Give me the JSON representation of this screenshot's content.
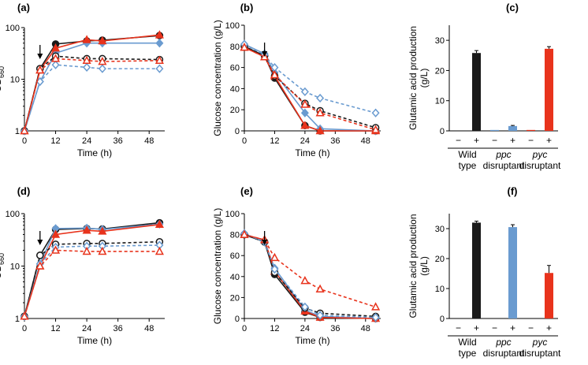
{
  "colors": {
    "black": "#1a1a1a",
    "blue": "#6a9bd0",
    "red": "#e8331c"
  },
  "chart_data": [
    {
      "id": "a",
      "panel_label": "(a)",
      "type": "line",
      "yscale": "log",
      "xlabel": "Time (h)",
      "ylabel_main": "OD",
      "ylabel_sub": "660",
      "xlim": [
        0,
        54
      ],
      "ylim": [
        1,
        100
      ],
      "xticks": [
        "0",
        "12",
        "24",
        "36",
        "48"
      ],
      "yticks": [
        "1",
        "10",
        "100"
      ],
      "arrow_x": 6,
      "series": [
        {
          "name": "wild type +",
          "color": "black",
          "marker": "circle",
          "fill": true,
          "dash": false,
          "x": [
            0,
            6,
            12,
            24,
            30,
            52
          ],
          "y": [
            1.0,
            16,
            48,
            55,
            57,
            70
          ]
        },
        {
          "name": "ppc disruptant +",
          "color": "blue",
          "marker": "diamond",
          "fill": true,
          "dash": false,
          "x": [
            0,
            6,
            12,
            24,
            30,
            52
          ],
          "y": [
            1.0,
            9,
            32,
            50,
            50,
            50
          ]
        },
        {
          "name": "pyc disruptant +",
          "color": "red",
          "marker": "triangle",
          "fill": true,
          "dash": false,
          "x": [
            0,
            6,
            12,
            24,
            30,
            52
          ],
          "y": [
            1.0,
            15,
            40,
            58,
            55,
            72
          ]
        },
        {
          "name": "wild type −",
          "color": "black",
          "marker": "circle",
          "fill": false,
          "dash": true,
          "x": [
            0,
            6,
            12,
            24,
            30,
            52
          ],
          "y": [
            1.0,
            16,
            28,
            25,
            25,
            24
          ]
        },
        {
          "name": "ppc disruptant −",
          "color": "blue",
          "marker": "diamond",
          "fill": false,
          "dash": true,
          "x": [
            0,
            6,
            12,
            24,
            30,
            52
          ],
          "y": [
            1.0,
            9,
            19,
            17,
            16,
            16
          ]
        },
        {
          "name": "pyc disruptant −",
          "color": "red",
          "marker": "triangle",
          "fill": false,
          "dash": true,
          "x": [
            0,
            6,
            12,
            24,
            30,
            52
          ],
          "y": [
            1.0,
            15,
            25,
            23,
            22,
            23
          ]
        }
      ]
    },
    {
      "id": "b",
      "panel_label": "(b)",
      "type": "line",
      "yscale": "linear",
      "xlabel": "Time (h)",
      "ylabel_main": "Glucose concentration (g/L)",
      "ylabel_sub": "",
      "xlim": [
        0,
        54
      ],
      "ylim": [
        0,
        100
      ],
      "xticks": [
        "0",
        "12",
        "24",
        "36",
        "48"
      ],
      "yticks": [
        "0",
        "20",
        "40",
        "60",
        "80",
        "100"
      ],
      "arrow_x": 8,
      "series": [
        {
          "name": "wild type +",
          "color": "black",
          "marker": "circle",
          "fill": true,
          "dash": false,
          "x": [
            0,
            8,
            12,
            24,
            30,
            52
          ],
          "y": [
            80,
            71,
            50,
            5,
            0,
            0
          ]
        },
        {
          "name": "ppc disruptant +",
          "color": "blue",
          "marker": "diamond",
          "fill": true,
          "dash": false,
          "x": [
            0,
            8,
            12,
            24,
            30,
            52
          ],
          "y": [
            82,
            73,
            55,
            17,
            2,
            0
          ]
        },
        {
          "name": "pyc disruptant +",
          "color": "red",
          "marker": "triangle",
          "fill": true,
          "dash": false,
          "x": [
            0,
            8,
            12,
            24,
            30,
            52
          ],
          "y": [
            79,
            70,
            52,
            5,
            0,
            0
          ]
        },
        {
          "name": "wild type −",
          "color": "black",
          "marker": "circle",
          "fill": false,
          "dash": true,
          "x": [
            0,
            8,
            12,
            24,
            30,
            52
          ],
          "y": [
            80,
            71,
            52,
            26,
            19,
            3
          ]
        },
        {
          "name": "ppc disruptant −",
          "color": "blue",
          "marker": "diamond",
          "fill": false,
          "dash": true,
          "x": [
            0,
            8,
            12,
            24,
            30,
            52
          ],
          "y": [
            82,
            72,
            60,
            37,
            31,
            17
          ]
        },
        {
          "name": "pyc disruptant −",
          "color": "red",
          "marker": "triangle",
          "fill": false,
          "dash": true,
          "x": [
            0,
            8,
            12,
            24,
            30,
            52
          ],
          "y": [
            79,
            70,
            53,
            25,
            17,
            1
          ]
        }
      ]
    },
    {
      "id": "c",
      "panel_label": "(c)",
      "type": "bar",
      "ylabel_line1": "Glutamic acid production",
      "ylabel_line2": "(g/L)",
      "ylim": [
        0,
        35
      ],
      "yticks": [
        "0",
        "10",
        "20",
        "30"
      ],
      "signs": [
        "−",
        "+",
        "−",
        "+",
        "−",
        "+"
      ],
      "values": [
        0,
        25.8,
        0.3,
        1.6,
        0.3,
        27.2
      ],
      "errors": [
        0,
        0.8,
        0,
        0.2,
        0,
        0.7
      ],
      "bar_colors": [
        "black",
        "black",
        "blue",
        "blue",
        "red",
        "red"
      ],
      "groups": [
        {
          "line1": "Wild",
          "line2": "type",
          "italic": false
        },
        {
          "line1": "ppc",
          "line2": "disruptant",
          "italic": true
        },
        {
          "line1": "pyc",
          "line2": "disruptant",
          "italic": true
        }
      ]
    },
    {
      "id": "d",
      "panel_label": "(d)",
      "type": "line",
      "yscale": "log",
      "xlabel": "Time (h)",
      "ylabel_main": "OD",
      "ylabel_sub": "660",
      "xlim": [
        0,
        54
      ],
      "ylim": [
        1,
        100
      ],
      "xticks": [
        "0",
        "12",
        "24",
        "36",
        "48"
      ],
      "yticks": [
        "1",
        "10",
        "100"
      ],
      "arrow_x": 6,
      "series": [
        {
          "name": "wild type +",
          "color": "black",
          "marker": "circle",
          "fill": true,
          "dash": false,
          "x": [
            0,
            6,
            12,
            24,
            30,
            52
          ],
          "y": [
            1.1,
            16,
            50,
            52,
            51,
            67
          ]
        },
        {
          "name": "ppc disruptant +",
          "color": "blue",
          "marker": "diamond",
          "fill": true,
          "dash": false,
          "x": [
            0,
            6,
            12,
            24,
            30,
            52
          ],
          "y": [
            1.1,
            11,
            52,
            53,
            50,
            63
          ]
        },
        {
          "name": "pyc disruptant +",
          "color": "red",
          "marker": "triangle",
          "fill": true,
          "dash": false,
          "x": [
            0,
            6,
            12,
            24,
            30,
            52
          ],
          "y": [
            1.1,
            10,
            40,
            48,
            46,
            62
          ]
        },
        {
          "name": "wild type −",
          "color": "black",
          "marker": "circle",
          "fill": false,
          "dash": true,
          "x": [
            0,
            6,
            12,
            24,
            30,
            52
          ],
          "y": [
            1.1,
            16,
            26,
            27,
            27,
            29
          ]
        },
        {
          "name": "ppc disruptant −",
          "color": "blue",
          "marker": "diamond",
          "fill": false,
          "dash": true,
          "x": [
            0,
            6,
            12,
            24,
            30,
            52
          ],
          "y": [
            1.1,
            11,
            23,
            24,
            24,
            25
          ]
        },
        {
          "name": "pyc disruptant −",
          "color": "red",
          "marker": "triangle",
          "fill": false,
          "dash": true,
          "x": [
            0,
            6,
            12,
            24,
            30,
            52
          ],
          "y": [
            1.1,
            10,
            20,
            19,
            19,
            19
          ]
        }
      ]
    },
    {
      "id": "e",
      "panel_label": "(e)",
      "type": "line",
      "yscale": "linear",
      "xlabel": "Time (h)",
      "ylabel_main": "Glucose concentration (g/L)",
      "ylabel_sub": "",
      "xlim": [
        0,
        54
      ],
      "ylim": [
        0,
        100
      ],
      "xticks": [
        "0",
        "12",
        "24",
        "36",
        "48"
      ],
      "yticks": [
        "0",
        "20",
        "40",
        "60",
        "80",
        "100"
      ],
      "arrow_x": 8,
      "series": [
        {
          "name": "wild type +",
          "color": "black",
          "marker": "circle",
          "fill": true,
          "dash": false,
          "x": [
            0,
            8,
            12,
            24,
            30,
            52
          ],
          "y": [
            80,
            73,
            42,
            6,
            1,
            0
          ]
        },
        {
          "name": "ppc disruptant +",
          "color": "blue",
          "marker": "diamond",
          "fill": true,
          "dash": false,
          "x": [
            0,
            8,
            12,
            24,
            30,
            52
          ],
          "y": [
            81,
            73,
            48,
            8,
            2,
            0
          ]
        },
        {
          "name": "pyc disruptant +",
          "color": "red",
          "marker": "triangle",
          "fill": true,
          "dash": false,
          "x": [
            0,
            8,
            12,
            24,
            30,
            52
          ],
          "y": [
            80,
            75,
            45,
            7,
            1,
            0
          ]
        },
        {
          "name": "wild type −",
          "color": "black",
          "marker": "circle",
          "fill": false,
          "dash": true,
          "x": [
            0,
            8,
            12,
            24,
            30,
            52
          ],
          "y": [
            80,
            73,
            44,
            10,
            5,
            2
          ]
        },
        {
          "name": "ppc disruptant −",
          "color": "blue",
          "marker": "diamond",
          "fill": false,
          "dash": true,
          "x": [
            0,
            8,
            12,
            24,
            30,
            52
          ],
          "y": [
            81,
            73,
            47,
            11,
            3,
            1
          ]
        },
        {
          "name": "pyc disruptant −",
          "color": "red",
          "marker": "triangle",
          "fill": false,
          "dash": true,
          "x": [
            0,
            8,
            12,
            24,
            30,
            52
          ],
          "y": [
            80,
            75,
            58,
            36,
            28,
            11
          ]
        }
      ]
    },
    {
      "id": "f",
      "panel_label": "(f)",
      "type": "bar",
      "ylabel_line1": "Glutamic acid production",
      "ylabel_line2": "(g/L)",
      "ylim": [
        0,
        35
      ],
      "yticks": [
        "0",
        "10",
        "20",
        "30"
      ],
      "signs": [
        "−",
        "+",
        "−",
        "+",
        "−",
        "+"
      ],
      "values": [
        0,
        32,
        0,
        30.5,
        0,
        15.2
      ],
      "errors": [
        0,
        0.5,
        0,
        0.8,
        0,
        2.5
      ],
      "bar_colors": [
        "black",
        "black",
        "blue",
        "blue",
        "red",
        "red"
      ],
      "groups": [
        {
          "line1": "Wild",
          "line2": "type",
          "italic": false
        },
        {
          "line1": "ppc",
          "line2": "disruptant",
          "italic": true
        },
        {
          "line1": "pyc",
          "line2": "disruptant",
          "italic": true
        }
      ]
    }
  ]
}
